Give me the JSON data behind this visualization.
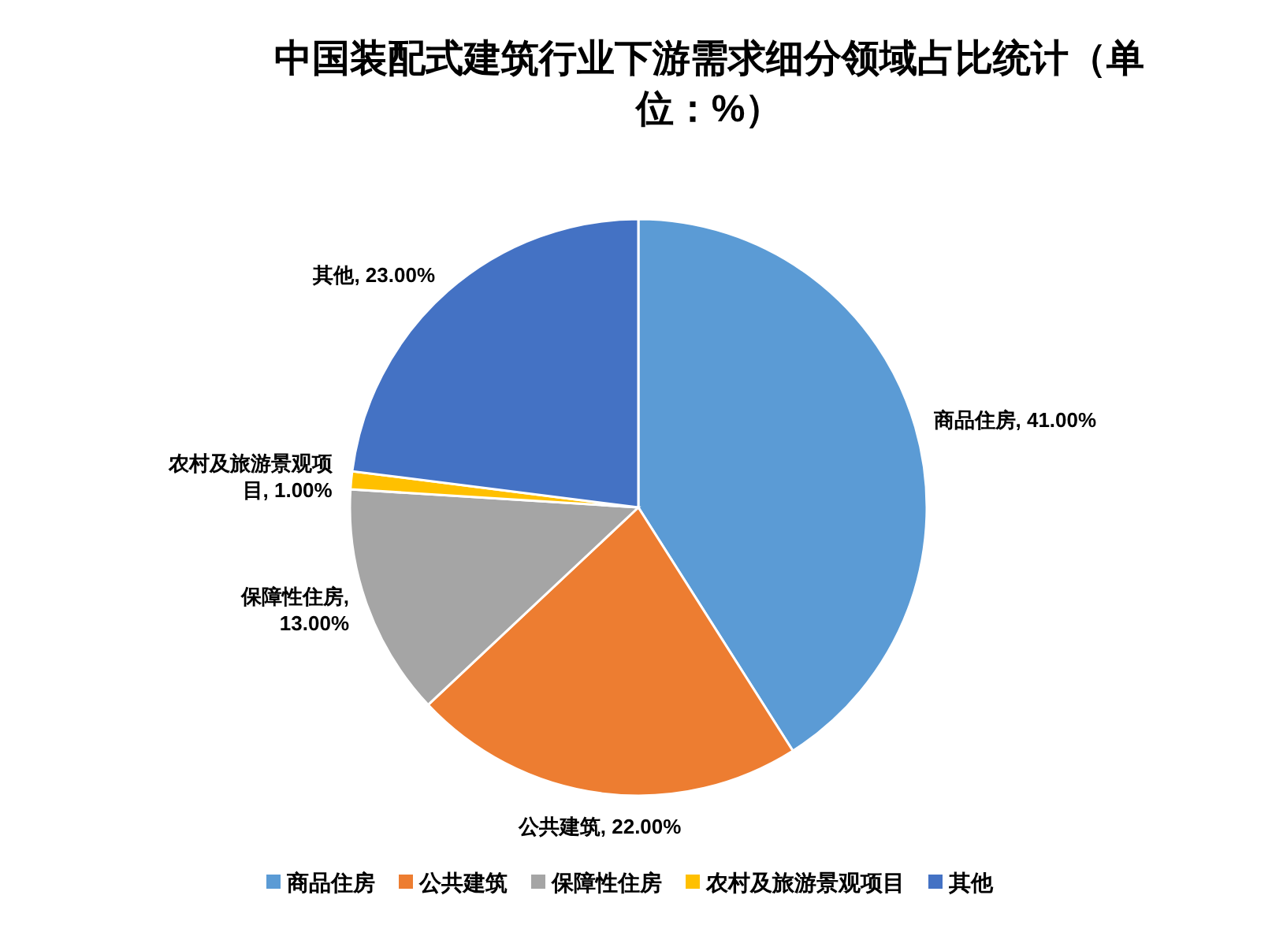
{
  "chart_data": {
    "type": "pie",
    "title": "中国装配式建筑行业下游需求细分领域占比统计（单位：%）",
    "categories": [
      "商品住房",
      "公共建筑",
      "保障性住房",
      "农村及旅游景观项目",
      "其他"
    ],
    "values": [
      41,
      22,
      13,
      1,
      23
    ],
    "value_labels": [
      "商品住房, 41.00%",
      "公共建筑, 22.00%",
      "保障性住房, 13.00%",
      "农村及旅游景观项目, 1.00%",
      "其他, 23.00%"
    ],
    "colors": [
      "#5b9bd5",
      "#ed7d31",
      "#a5a5a5",
      "#ffc000",
      "#4472c4"
    ],
    "legend": "bottom"
  }
}
